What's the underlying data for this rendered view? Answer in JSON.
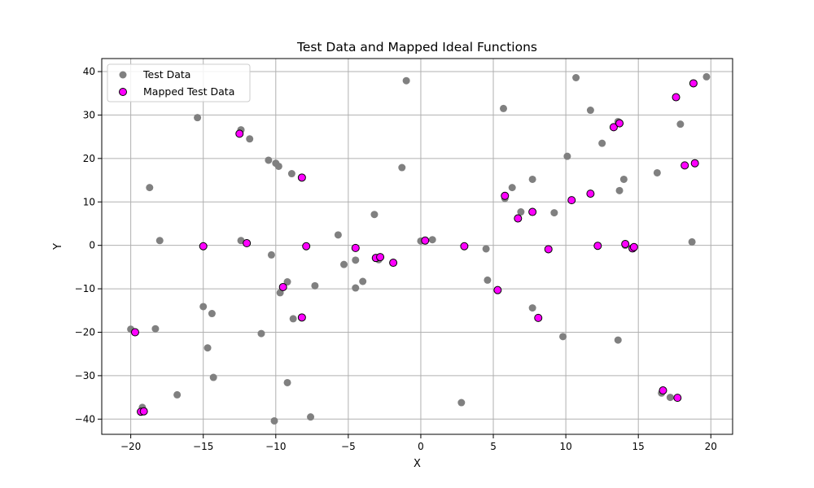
{
  "chart_data": {
    "type": "scatter",
    "title": "Test Data and Mapped Ideal Functions",
    "xlabel": "X",
    "ylabel": "Y",
    "xlim": [
      -22,
      21.5
    ],
    "ylim": [
      -43.5,
      43
    ],
    "xticks": [
      -20,
      -15,
      -10,
      -5,
      0,
      5,
      10,
      15,
      20
    ],
    "yticks": [
      -40,
      -30,
      -20,
      -10,
      0,
      10,
      20,
      30,
      40
    ],
    "grid": true,
    "legend_position": "top-left",
    "series": [
      {
        "name": "Test Data",
        "color": "#808080",
        "points": [
          [
            -20,
            -19.3
          ],
          [
            -19.7,
            -20
          ],
          [
            -19.2,
            -37.3
          ],
          [
            -19.1,
            -38.2
          ],
          [
            -18.7,
            13.3
          ],
          [
            -18.3,
            -19.2
          ],
          [
            -18,
            1.1
          ],
          [
            -16.8,
            -34.4
          ],
          [
            -15.4,
            29.4
          ],
          [
            -15,
            -14.1
          ],
          [
            -15,
            -0.2
          ],
          [
            -14.7,
            -23.6
          ],
          [
            -14.4,
            -15.7
          ],
          [
            -14.3,
            -30.4
          ],
          [
            -12.4,
            26.6
          ],
          [
            -12.5,
            25.7
          ],
          [
            -12.4,
            1.1
          ],
          [
            -12,
            0.5
          ],
          [
            -11.8,
            24.5
          ],
          [
            -11,
            -20.3
          ],
          [
            -10.5,
            19.6
          ],
          [
            -10.3,
            -2.2
          ],
          [
            -10,
            18.9
          ],
          [
            -10.1,
            -40.4
          ],
          [
            -9.8,
            18.2
          ],
          [
            -9.7,
            -10.9
          ],
          [
            -9.5,
            -9.6
          ],
          [
            -9.2,
            -8.4
          ],
          [
            -9.2,
            -31.6
          ],
          [
            -8.9,
            16.5
          ],
          [
            -8.8,
            -16.9
          ],
          [
            -8.2,
            15.6
          ],
          [
            -8.2,
            -16.6
          ],
          [
            -7.9,
            -0.2
          ],
          [
            -7.6,
            -39.5
          ],
          [
            -7.3,
            -9.3
          ],
          [
            -5.7,
            2.4
          ],
          [
            -5.3,
            -4.4
          ],
          [
            -4.5,
            -0.6
          ],
          [
            -4.5,
            -3.4
          ],
          [
            -4.5,
            -9.8
          ],
          [
            -4,
            -8.3
          ],
          [
            -3.2,
            7.1
          ],
          [
            -3.1,
            -2.9
          ],
          [
            -2.9,
            -3.3
          ],
          [
            -2.8,
            -2.7
          ],
          [
            -1.9,
            -4
          ],
          [
            -1.3,
            17.9
          ],
          [
            -1,
            37.9
          ],
          [
            0,
            1
          ],
          [
            0.3,
            1.1
          ],
          [
            0.8,
            1.3
          ],
          [
            2.8,
            -36.2
          ],
          [
            3,
            -0.2
          ],
          [
            4.5,
            -0.8
          ],
          [
            4.6,
            -8
          ],
          [
            5.3,
            -10.3
          ],
          [
            5.7,
            31.5
          ],
          [
            5.8,
            10.8
          ],
          [
            5.8,
            11.4
          ],
          [
            6.3,
            13.3
          ],
          [
            6.7,
            6.2
          ],
          [
            6.9,
            7.7
          ],
          [
            7.7,
            15.2
          ],
          [
            7.7,
            -14.4
          ],
          [
            7.7,
            7.7
          ],
          [
            8.1,
            -16.7
          ],
          [
            8.8,
            -0.9
          ],
          [
            9.2,
            7.5
          ],
          [
            9.8,
            -21
          ],
          [
            10.1,
            20.5
          ],
          [
            10.4,
            10.4
          ],
          [
            10.7,
            38.6
          ],
          [
            11.7,
            31.1
          ],
          [
            11.7,
            11.9
          ],
          [
            12.2,
            -0.1
          ],
          [
            12.5,
            23.5
          ],
          [
            13.3,
            27.2
          ],
          [
            13.6,
            28.5
          ],
          [
            13.7,
            28.1
          ],
          [
            13.6,
            -21.8
          ],
          [
            13.7,
            12.6
          ],
          [
            14,
            15.2
          ],
          [
            14.1,
            0
          ],
          [
            14.1,
            0.3
          ],
          [
            14.6,
            -0.7
          ],
          [
            14.7,
            -0.4
          ],
          [
            16.3,
            16.7
          ],
          [
            16.6,
            -34
          ],
          [
            16.7,
            -33.4
          ],
          [
            17.2,
            -35
          ],
          [
            17.6,
            34.1
          ],
          [
            17.7,
            -35.1
          ],
          [
            17.9,
            27.9
          ],
          [
            18.2,
            18.4
          ],
          [
            18.7,
            0.8
          ],
          [
            18.8,
            37.3
          ],
          [
            18.9,
            18.9
          ],
          [
            19.7,
            38.8
          ]
        ]
      },
      {
        "name": "Mapped Test Data",
        "color": "#ff00ff",
        "points": [
          [
            -19.7,
            -20
          ],
          [
            -19.3,
            -38.3
          ],
          [
            -19.1,
            -38.2
          ],
          [
            -15,
            -0.2
          ],
          [
            -12.5,
            25.7
          ],
          [
            -12,
            0.5
          ],
          [
            -9.5,
            -9.6
          ],
          [
            -8.2,
            15.6
          ],
          [
            -8.2,
            -16.6
          ],
          [
            -7.9,
            -0.2
          ],
          [
            -4.5,
            -0.6
          ],
          [
            -3.1,
            -2.9
          ],
          [
            -2.8,
            -2.7
          ],
          [
            -1.9,
            -4
          ],
          [
            0.3,
            1.1
          ],
          [
            3,
            -0.2
          ],
          [
            5.3,
            -10.3
          ],
          [
            5.8,
            11.4
          ],
          [
            6.7,
            6.2
          ],
          [
            7.7,
            7.7
          ],
          [
            8.1,
            -16.7
          ],
          [
            8.8,
            -0.9
          ],
          [
            10.4,
            10.4
          ],
          [
            11.7,
            11.9
          ],
          [
            12.2,
            -0.1
          ],
          [
            13.3,
            27.2
          ],
          [
            13.7,
            28.1
          ],
          [
            14.1,
            0.3
          ],
          [
            14.6,
            -0.7
          ],
          [
            14.7,
            -0.4
          ],
          [
            16.7,
            -33.4
          ],
          [
            17.6,
            34.1
          ],
          [
            17.7,
            -35.1
          ],
          [
            18.2,
            18.4
          ],
          [
            18.8,
            37.3
          ],
          [
            18.9,
            18.9
          ]
        ]
      }
    ]
  }
}
